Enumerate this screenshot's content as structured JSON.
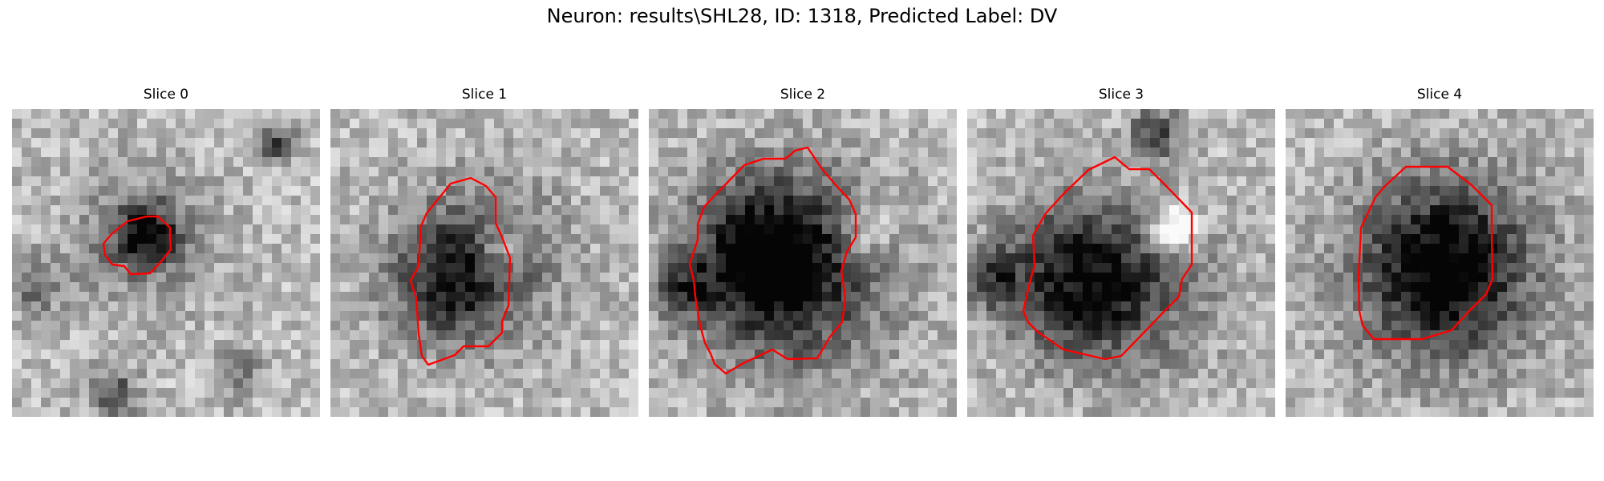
{
  "figure": {
    "title": "Neuron: results\\SHL28, ID: 1318, Predicted Label: DV"
  },
  "panels": [
    {
      "title": "Slice 0"
    },
    {
      "title": "Slice 1"
    },
    {
      "title": "Slice 2"
    },
    {
      "title": "Slice 3"
    },
    {
      "title": "Slice 4"
    }
  ],
  "colors": {
    "contour": "#ff0000",
    "colormap": "gray"
  }
}
